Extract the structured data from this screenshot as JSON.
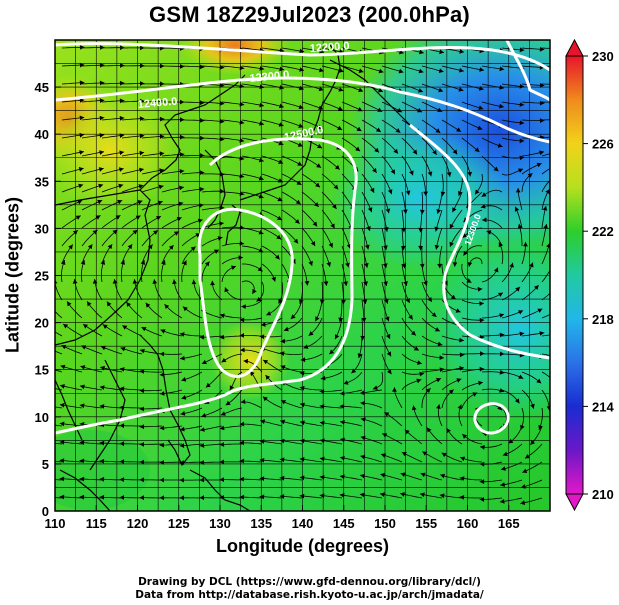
{
  "title": "GSM 18Z29Jul2023 (200.0hPa)",
  "axes": {
    "xlabel": "Longitude (degrees)",
    "ylabel": "Latitude  (degrees)",
    "x_ticks": [
      "110",
      "115",
      "120",
      "125",
      "130",
      "135",
      "140",
      "145",
      "150",
      "155",
      "160",
      "165"
    ],
    "y_ticks": [
      "0",
      "5",
      "10",
      "15",
      "20",
      "25",
      "30",
      "35",
      "40",
      "45"
    ]
  },
  "colorbar": {
    "labels": [
      "230",
      "226",
      "222",
      "218",
      "214",
      "210"
    ],
    "colors": [
      "#e8152a",
      "#f08a1e",
      "#f2d21a",
      "#b6e01e",
      "#2ccf2a",
      "#22c9a0",
      "#21b7e8",
      "#2a72e8",
      "#1a2cd0",
      "#6a18c8",
      "#e218c8"
    ]
  },
  "contour_labels": [
    "12400.0",
    "12500.0",
    "12300.0",
    "12200.0",
    "12300.0"
  ],
  "credits": {
    "line1": "Drawing by DCL (https://www.gfd-dennou.org/library/dcl/)",
    "line2": "Data from http://database.rish.kyoto-u.ac.jp/arch/jmadata/"
  },
  "chart_data": {
    "type": "heatmap",
    "title": "GSM 18Z29Jul2023 (200.0hPa)",
    "xlabel": "Longitude (degrees)",
    "ylabel": "Latitude  (degrees)",
    "xlim": [
      110,
      170
    ],
    "ylim": [
      0,
      50
    ],
    "colorbar_range": [
      210,
      230
    ],
    "colorbar_ticks": [
      230,
      226,
      222,
      218,
      214,
      210
    ],
    "contours": [
      12200.0,
      12300.0,
      12400.0,
      12500.0
    ],
    "grid": true
  }
}
